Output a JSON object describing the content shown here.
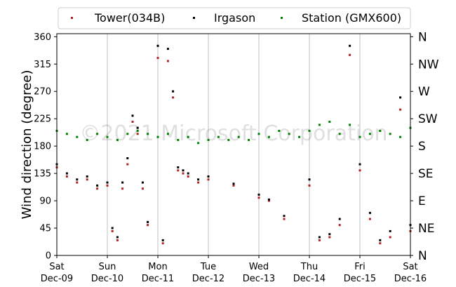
{
  "chart_data": {
    "type": "scatter",
    "title": "",
    "xlabel": "",
    "ylabel": "Wind direction (degree)",
    "x_tick_labels": [
      {
        "day": "Sat",
        "date": "Dec-09"
      },
      {
        "day": "Sun",
        "date": "Dec-10"
      },
      {
        "day": "Mon",
        "date": "Dec-11"
      },
      {
        "day": "Tue",
        "date": "Dec-12"
      },
      {
        "day": "Wed",
        "date": "Dec-13"
      },
      {
        "day": "Thu",
        "date": "Dec-14"
      },
      {
        "day": "Fri",
        "date": "Dec-15"
      },
      {
        "day": "Sat",
        "date": "Dec-16"
      }
    ],
    "xlim": [
      0,
      7
    ],
    "ylim": [
      0,
      365
    ],
    "y_ticks": [
      0,
      45,
      90,
      135,
      180,
      225,
      270,
      315,
      360
    ],
    "y_tick_labels": [
      "0",
      "45",
      "90",
      "135",
      "180",
      "225",
      "270",
      "315",
      "360"
    ],
    "compass": [
      {
        "label": "N",
        "value": 0
      },
      {
        "label": "NE",
        "value": 45
      },
      {
        "label": "E",
        "value": 90
      },
      {
        "label": "SE",
        "value": 135
      },
      {
        "label": "S",
        "value": 180
      },
      {
        "label": "SW",
        "value": 225
      },
      {
        "label": "W",
        "value": 270
      },
      {
        "label": "NW",
        "value": 315
      },
      {
        "label": "N",
        "value": 360
      }
    ],
    "vertical_grid": true,
    "legend_position": "top",
    "watermark": "©2021 Microsoft Corporation",
    "series": [
      {
        "name": "Tower(034B)",
        "color": "#b22222",
        "x": [
          0.0,
          0.2,
          0.4,
          0.6,
          0.8,
          1.0,
          1.1,
          1.2,
          1.3,
          1.4,
          1.5,
          1.6,
          1.7,
          1.8,
          2.0,
          2.1,
          2.2,
          2.3,
          2.4,
          2.5,
          2.6,
          2.8,
          3.0,
          3.5,
          4.0,
          4.2,
          4.5,
          5.0,
          5.2,
          5.4,
          5.6,
          5.8,
          6.0,
          6.2,
          6.4,
          6.6,
          6.8,
          7.0
        ],
        "y": [
          145,
          130,
          120,
          125,
          110,
          115,
          40,
          25,
          110,
          150,
          220,
          200,
          110,
          50,
          325,
          20,
          320,
          260,
          140,
          135,
          130,
          120,
          125,
          115,
          95,
          90,
          60,
          115,
          25,
          30,
          50,
          330,
          140,
          60,
          20,
          30,
          240,
          40
        ]
      },
      {
        "name": "Irgason",
        "color": "#000000",
        "x": [
          0.0,
          0.2,
          0.4,
          0.6,
          0.8,
          1.0,
          1.1,
          1.2,
          1.3,
          1.4,
          1.5,
          1.6,
          1.7,
          1.8,
          2.0,
          2.1,
          2.2,
          2.3,
          2.4,
          2.5,
          2.6,
          2.8,
          3.0,
          3.5,
          4.0,
          4.2,
          4.5,
          5.0,
          5.2,
          5.4,
          5.6,
          5.8,
          6.0,
          6.2,
          6.4,
          6.6,
          6.8,
          7.0
        ],
        "y": [
          150,
          135,
          125,
          130,
          115,
          120,
          45,
          30,
          120,
          160,
          230,
          210,
          120,
          55,
          345,
          25,
          340,
          270,
          145,
          140,
          135,
          125,
          130,
          118,
          100,
          92,
          65,
          125,
          30,
          35,
          60,
          345,
          150,
          70,
          25,
          40,
          260,
          50
        ]
      },
      {
        "name": "Station (GMX600)",
        "color": "#008000",
        "x": [
          0.0,
          0.2,
          0.4,
          0.6,
          0.8,
          1.0,
          1.2,
          1.4,
          1.6,
          1.8,
          2.0,
          2.2,
          2.4,
          2.6,
          2.8,
          3.0,
          3.2,
          3.4,
          3.6,
          3.8,
          4.0,
          4.2,
          4.4,
          4.6,
          4.8,
          5.0,
          5.2,
          5.4,
          5.6,
          5.8,
          6.0,
          6.2,
          6.4,
          6.6,
          6.8,
          7.0
        ],
        "y": [
          205,
          200,
          195,
          190,
          200,
          195,
          190,
          200,
          205,
          200,
          195,
          200,
          190,
          195,
          185,
          190,
          195,
          190,
          195,
          190,
          200,
          195,
          205,
          200,
          195,
          205,
          215,
          220,
          200,
          215,
          195,
          200,
          205,
          200,
          195,
          210
        ]
      }
    ]
  }
}
